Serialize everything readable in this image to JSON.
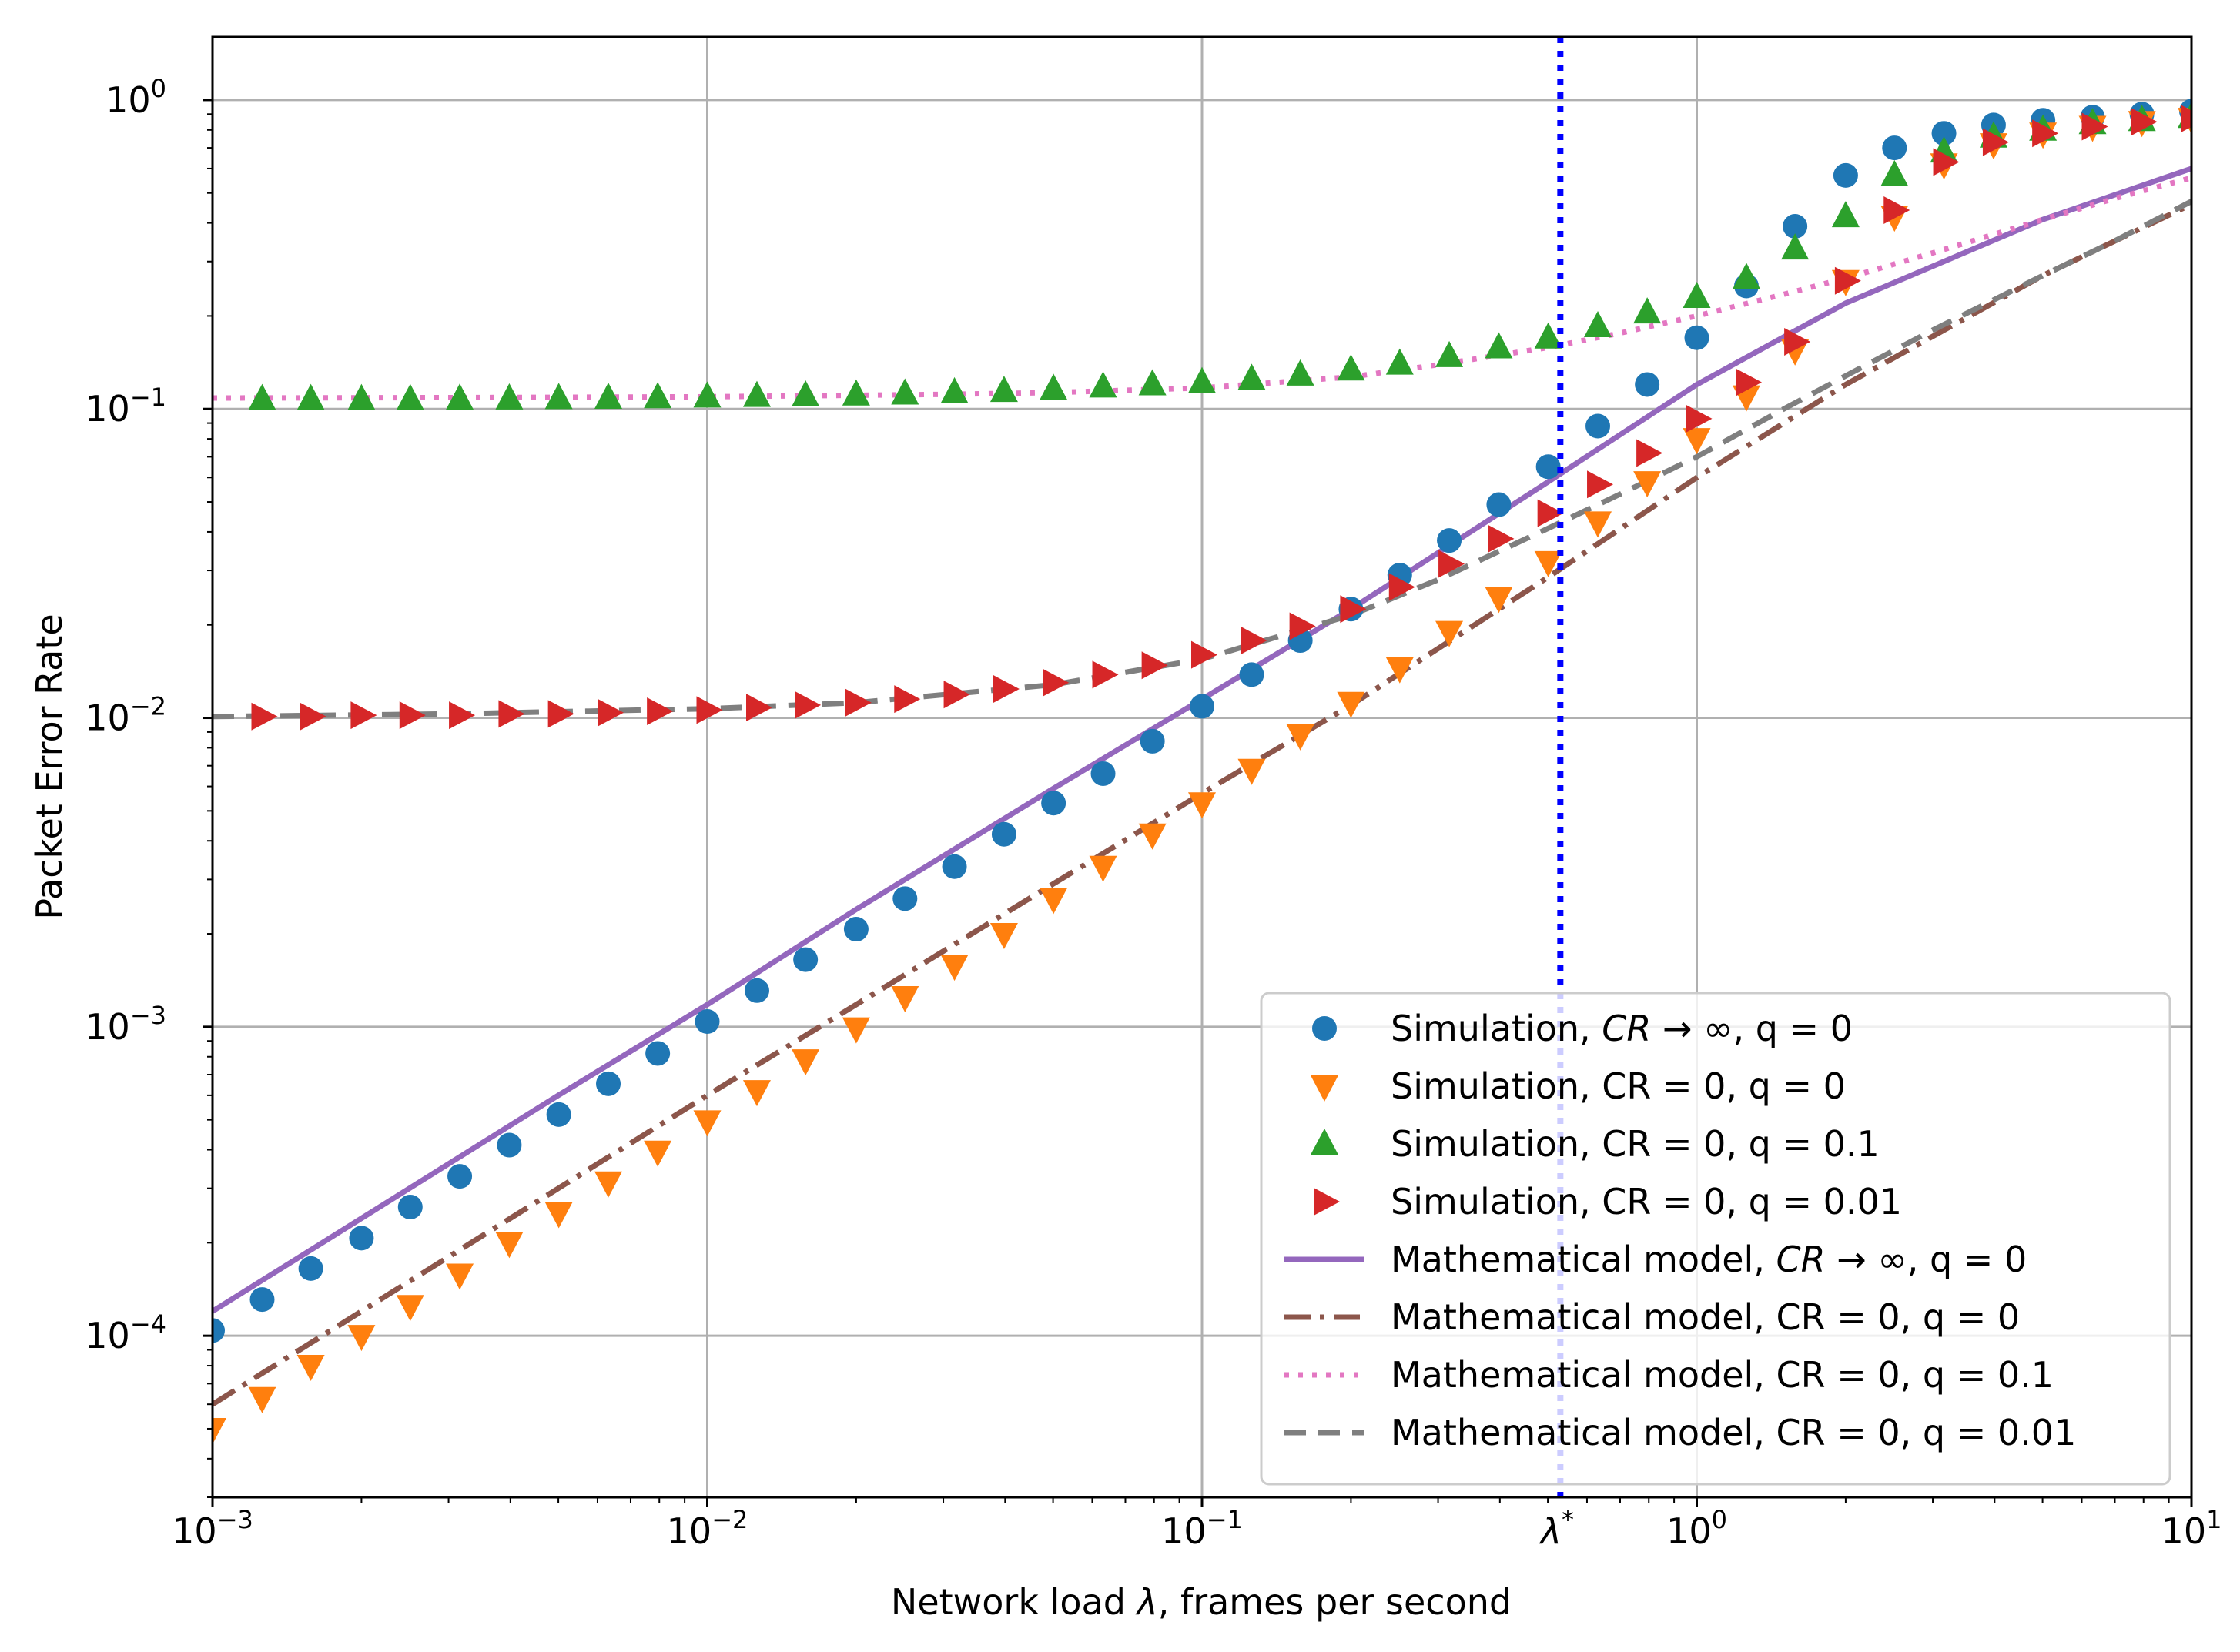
{
  "chart_data": {
    "type": "scatter",
    "title": "",
    "xlabel_parts": [
      "Network load ",
      "λ",
      ", frames per second"
    ],
    "ylabel": "Packet Error Rate",
    "xscale": "log",
    "yscale": "log",
    "xlim": [
      0.001,
      10
    ],
    "ylim": [
      3e-05,
      1.6
    ],
    "grid": true,
    "x_ticks": [
      {
        "value": 0.001,
        "base": "10",
        "exp": "−3"
      },
      {
        "value": 0.01,
        "base": "10",
        "exp": "−2"
      },
      {
        "value": 0.1,
        "base": "10",
        "exp": "−1"
      },
      {
        "value": 1,
        "base": "10",
        "exp": "0"
      },
      {
        "value": 10,
        "base": "10",
        "exp": "1"
      }
    ],
    "y_ticks": [
      {
        "value": 0.0001,
        "base": "10",
        "exp": "−4"
      },
      {
        "value": 0.001,
        "base": "10",
        "exp": "−3"
      },
      {
        "value": 0.01,
        "base": "10",
        "exp": "−2"
      },
      {
        "value": 0.1,
        "base": "10",
        "exp": "−1"
      },
      {
        "value": 1,
        "base": "10",
        "exp": "0"
      }
    ],
    "annotations": [
      {
        "type": "vline",
        "x": 0.53,
        "label": "λ",
        "label_sup": "*",
        "color": "#0000ff",
        "style": "dotted"
      }
    ],
    "legend_position": "lower-right",
    "series": [
      {
        "name": "Simulation, CR → ∞, q = 0",
        "legend": [
          "Simulation, ",
          "CR",
          " → ∞, q = 0"
        ],
        "kind": "marker",
        "marker": "circle",
        "color": "#1f77b4",
        "x": [
          0.001,
          0.00126,
          0.00158,
          0.002,
          0.00251,
          0.00316,
          0.00398,
          0.00501,
          0.00631,
          0.00794,
          0.01,
          0.0126,
          0.0158,
          0.02,
          0.0251,
          0.0316,
          0.0398,
          0.0501,
          0.0631,
          0.0794,
          0.1,
          0.126,
          0.158,
          0.2,
          0.251,
          0.316,
          0.398,
          0.501,
          0.631,
          0.794,
          1,
          1.26,
          1.58,
          2,
          2.51,
          3.16,
          3.98,
          5.01,
          6.31,
          7.94,
          10
        ],
        "y": [
          0.000104,
          0.000131,
          0.000165,
          0.000207,
          0.000261,
          0.000328,
          0.000414,
          0.00052,
          0.000654,
          0.00082,
          0.00104,
          0.00131,
          0.00165,
          0.00207,
          0.0026,
          0.0033,
          0.0042,
          0.0053,
          0.0066,
          0.0084,
          0.0109,
          0.0138,
          0.0178,
          0.0225,
          0.029,
          0.0375,
          0.049,
          0.065,
          0.088,
          0.12,
          0.17,
          0.25,
          0.39,
          0.57,
          0.7,
          0.78,
          0.83,
          0.86,
          0.88,
          0.9,
          0.92
        ]
      },
      {
        "name": "Simulation, CR = 0, q = 0",
        "legend": [
          "Simulation, CR = 0, q = 0"
        ],
        "kind": "marker",
        "marker": "triangle-down",
        "color": "#ff7f0e",
        "x": [
          0.001,
          0.00126,
          0.00158,
          0.002,
          0.00251,
          0.00316,
          0.00398,
          0.00501,
          0.00631,
          0.00794,
          0.01,
          0.0126,
          0.0158,
          0.02,
          0.0251,
          0.0316,
          0.0398,
          0.0501,
          0.0631,
          0.0794,
          0.1,
          0.126,
          0.158,
          0.2,
          0.251,
          0.316,
          0.398,
          0.501,
          0.631,
          0.794,
          1,
          1.26,
          1.58,
          2,
          2.51,
          3.16,
          3.98,
          5.01,
          6.31,
          7.94,
          10
        ],
        "y": [
          5e-05,
          6.3e-05,
          8e-05,
          0.0001,
          0.000125,
          0.000158,
          0.0002,
          0.00025,
          0.000314,
          0.000395,
          0.000495,
          0.00062,
          0.00078,
          0.00099,
          0.00125,
          0.00158,
          0.002,
          0.0026,
          0.0033,
          0.0042,
          0.0053,
          0.0068,
          0.0088,
          0.0112,
          0.0145,
          0.019,
          0.0245,
          0.032,
          0.043,
          0.058,
          0.08,
          0.11,
          0.155,
          0.26,
          0.42,
          0.62,
          0.72,
          0.78,
          0.82,
          0.85,
          0.87
        ]
      },
      {
        "name": "Simulation, CR = 0, q = 0.1",
        "legend": [
          "Simulation, CR = 0, q = 0.1"
        ],
        "kind": "marker",
        "marker": "triangle-up",
        "color": "#2ca02c",
        "x": [
          0.00126,
          0.00158,
          0.002,
          0.00251,
          0.00316,
          0.00398,
          0.00501,
          0.00631,
          0.00794,
          0.01,
          0.0126,
          0.0158,
          0.02,
          0.0251,
          0.0316,
          0.0398,
          0.0501,
          0.0631,
          0.0794,
          0.1,
          0.126,
          0.158,
          0.2,
          0.251,
          0.316,
          0.398,
          0.501,
          0.631,
          0.794,
          1,
          1.26,
          1.58,
          2,
          2.51,
          3.16,
          3.98,
          5.01,
          6.31,
          7.94,
          10
        ],
        "y": [
          0.1075,
          0.1075,
          0.1075,
          0.1075,
          0.1078,
          0.108,
          0.1083,
          0.1085,
          0.109,
          0.1095,
          0.11,
          0.1105,
          0.1112,
          0.112,
          0.113,
          0.1142,
          0.116,
          0.118,
          0.12,
          0.122,
          0.125,
          0.129,
          0.134,
          0.14,
          0.148,
          0.158,
          0.17,
          0.185,
          0.205,
          0.23,
          0.265,
          0.33,
          0.42,
          0.57,
          0.68,
          0.76,
          0.8,
          0.84,
          0.86,
          0.88
        ]
      },
      {
        "name": "Simulation, CR = 0, q = 0.01",
        "legend": [
          "Simulation, CR = 0, q = 0.01"
        ],
        "kind": "marker",
        "marker": "triangle-right",
        "color": "#d62728",
        "x": [
          0.00126,
          0.00158,
          0.002,
          0.00251,
          0.00316,
          0.00398,
          0.00501,
          0.00631,
          0.00794,
          0.01,
          0.0126,
          0.0158,
          0.02,
          0.0251,
          0.0316,
          0.0398,
          0.0501,
          0.0631,
          0.0794,
          0.1,
          0.126,
          0.158,
          0.2,
          0.251,
          0.316,
          0.398,
          0.501,
          0.631,
          0.794,
          1,
          1.26,
          1.58,
          2,
          2.51,
          3.16,
          3.98,
          5.01,
          6.31,
          7.94,
          10
        ],
        "y": [
          0.0101,
          0.0101,
          0.0102,
          0.0102,
          0.0102,
          0.0103,
          0.0103,
          0.0104,
          0.0105,
          0.0106,
          0.0108,
          0.011,
          0.0112,
          0.0115,
          0.0119,
          0.0124,
          0.013,
          0.0138,
          0.0148,
          0.016,
          0.0178,
          0.0198,
          0.0225,
          0.0265,
          0.0315,
          0.038,
          0.046,
          0.057,
          0.072,
          0.093,
          0.122,
          0.165,
          0.26,
          0.44,
          0.63,
          0.73,
          0.78,
          0.82,
          0.85,
          0.87
        ]
      },
      {
        "name": "Mathematical model, CR → ∞, q = 0",
        "legend": [
          "Mathematical model, ",
          "CR",
          " → ∞, q = 0"
        ],
        "kind": "line",
        "style": "solid",
        "color": "#9467bd",
        "x": [
          0.001,
          0.002,
          0.005,
          0.01,
          0.02,
          0.05,
          0.1,
          0.2,
          0.5,
          1,
          2,
          5,
          10
        ],
        "y": [
          0.00012,
          0.00024,
          0.0006,
          0.00118,
          0.0024,
          0.0059,
          0.0115,
          0.0225,
          0.058,
          0.12,
          0.22,
          0.41,
          0.6
        ]
      },
      {
        "name": "Mathematical model, CR = 0, q = 0",
        "legend": [
          "Mathematical model, CR = 0, q = 0"
        ],
        "kind": "line",
        "style": "dashdot",
        "color": "#8c564b",
        "x": [
          0.001,
          0.002,
          0.005,
          0.01,
          0.02,
          0.05,
          0.1,
          0.2,
          0.5,
          1,
          2,
          5,
          10
        ],
        "y": [
          6e-05,
          0.00012,
          0.0003,
          0.0006,
          0.00118,
          0.0029,
          0.0057,
          0.011,
          0.0285,
          0.06,
          0.12,
          0.27,
          0.46
        ]
      },
      {
        "name": "Mathematical model, CR = 0, q = 0.1",
        "legend": [
          "Mathematical model, CR = 0, q = 0.1"
        ],
        "kind": "line",
        "style": "dotted",
        "color": "#e377c2",
        "x": [
          0.001,
          0.003,
          0.01,
          0.03,
          0.05,
          0.1,
          0.2,
          0.3,
          0.5,
          0.7,
          1,
          1.5,
          2,
          3,
          5,
          7,
          10
        ],
        "y": [
          0.1085,
          0.1088,
          0.1095,
          0.1115,
          0.113,
          0.117,
          0.127,
          0.139,
          0.158,
          0.176,
          0.2,
          0.235,
          0.265,
          0.32,
          0.41,
          0.48,
          0.56
        ]
      },
      {
        "name": "Mathematical model, CR = 0, q = 0.01",
        "legend": [
          "Mathematical model, CR = 0, q = 0.01"
        ],
        "kind": "line",
        "style": "dashed",
        "color": "#7f7f7f",
        "x": [
          0.001,
          0.003,
          0.01,
          0.02,
          0.05,
          0.1,
          0.2,
          0.3,
          0.5,
          0.7,
          1,
          1.5,
          2,
          3,
          5,
          7,
          10
        ],
        "y": [
          0.0101,
          0.0103,
          0.0107,
          0.0112,
          0.0128,
          0.0155,
          0.0215,
          0.028,
          0.041,
          0.053,
          0.07,
          0.1,
          0.128,
          0.18,
          0.27,
          0.35,
          0.47
        ]
      }
    ]
  }
}
